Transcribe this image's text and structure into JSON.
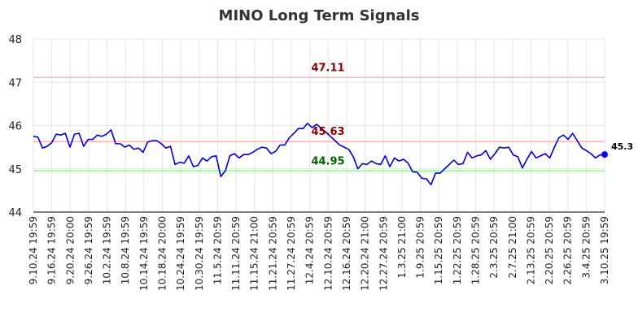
{
  "chart_data": {
    "type": "line",
    "title": "MINO Long Term Signals",
    "xlabel": "",
    "ylabel": "",
    "ylim": [
      44,
      48
    ],
    "yticks": [
      "44",
      "45",
      "46",
      "47",
      "48"
    ],
    "xtick_labels": [
      "9.10.24 19:59",
      "9.16.24 19:59",
      "9.20.24 20:00",
      "9.26.24 19:59",
      "10.2.24 19:59",
      "10.8.24 19:59",
      "10.14.24 19:59",
      "10.18.24 20:00",
      "10.24.24 19:59",
      "10.30.24 19:59",
      "11.5.24 20:59",
      "11.11.24 20:59",
      "11.15.24 21:00",
      "11.21.24 20:59",
      "11.27.24 20:59",
      "12.4.24 20:59",
      "12.10.24 20:59",
      "12.16.24 20:59",
      "12.20.24 21:00",
      "12.27.24 20:59",
      "1.3.25 21:00",
      "1.9.25 20:59",
      "1.15.25 20:59",
      "1.22.25 20:59",
      "1.28.25 20:59",
      "2.3.25 20:59",
      "2.7.25 21:00",
      "2.13.25 20:59",
      "2.20.25 20:59",
      "2.26.25 20:59",
      "3.4.25 20:59",
      "3.10.25 19:59"
    ],
    "grid": true,
    "colors": {
      "line": "#0000cc",
      "upper_ref": "#ffb3b3",
      "lower_ref": "#90ee90",
      "upper_text": "#8b0000",
      "lower_text": "#006400",
      "last_point": "#0000ff"
    },
    "series": [
      {
        "values": [
          45.75,
          45.73,
          45.48,
          45.52,
          45.6,
          45.8,
          45.78,
          45.82,
          45.5,
          45.8,
          45.82,
          45.52,
          45.68,
          45.68,
          45.78,
          45.75,
          45.8,
          45.9,
          45.58,
          45.58,
          45.5,
          45.55,
          45.45,
          45.48,
          45.38,
          45.62,
          45.65,
          45.65,
          45.58,
          45.48,
          45.52,
          45.1,
          45.15,
          45.13,
          45.3,
          45.05,
          45.08,
          45.25,
          45.18,
          45.28,
          45.3,
          44.82,
          44.95,
          45.3,
          45.35,
          45.25,
          45.33,
          45.33,
          45.38,
          45.45,
          45.5,
          45.48,
          45.35,
          45.4,
          45.55,
          45.55,
          45.72,
          45.82,
          45.93,
          45.93,
          46.05,
          45.95,
          46.03,
          45.93,
          45.85,
          45.75,
          45.65,
          45.55,
          45.5,
          45.45,
          45.28,
          45.0,
          45.12,
          45.1,
          45.18,
          45.12,
          45.1,
          45.3,
          45.05,
          45.25,
          45.18,
          45.22,
          45.13,
          44.93,
          44.92,
          44.78,
          44.77,
          44.63,
          44.9,
          44.9,
          45.0,
          45.1,
          45.2,
          45.1,
          45.12,
          45.38,
          45.25,
          45.3,
          45.32,
          45.42,
          45.22,
          45.35,
          45.5,
          45.48,
          45.5,
          45.32,
          45.28,
          45.02,
          45.22,
          45.4,
          45.25,
          45.3,
          45.35,
          45.25,
          45.5,
          45.72,
          45.78,
          45.68,
          45.82,
          45.65,
          45.48,
          45.42,
          45.35,
          45.25,
          45.32,
          45.33
        ]
      }
    ],
    "reference_lines": [
      {
        "value": 47.11,
        "label": "47.11",
        "kind": "resistance"
      },
      {
        "value": 45.63,
        "label": "45.63",
        "kind": "resistance"
      },
      {
        "value": 44.95,
        "label": "44.95",
        "kind": "support"
      }
    ],
    "last_value_label": "45.3"
  }
}
